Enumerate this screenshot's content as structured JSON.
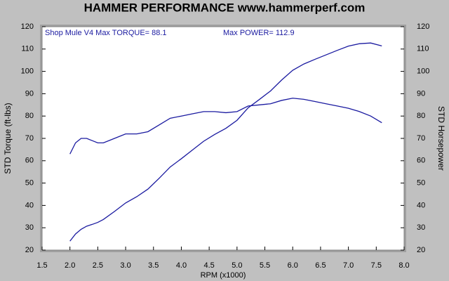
{
  "chart_data": {
    "type": "line",
    "title": "HAMMER PERFORMANCE www.hammerperf.com",
    "annotations": [
      "Shop Mule V4  Max TORQUE= 88.1",
      "Max POWER= 112.9"
    ],
    "x_label": "RPM (x1000)",
    "y_label": "STD Torque (ft-lbs)",
    "y2_label": "STD Horsepower",
    "x": [
      2.0,
      2.1,
      2.2,
      2.3,
      2.4,
      2.5,
      2.6,
      2.8,
      3.0,
      3.2,
      3.4,
      3.6,
      3.8,
      4.0,
      4.2,
      4.4,
      4.6,
      4.8,
      5.0,
      5.2,
      5.4,
      5.6,
      5.8,
      6.0,
      6.2,
      6.4,
      6.6,
      6.8,
      7.0,
      7.2,
      7.4,
      7.6
    ],
    "series": [
      {
        "color": "#1a1aa0",
        "values": [
          63,
          68,
          70,
          70,
          69,
          68,
          68,
          70,
          72,
          72,
          73,
          76,
          79,
          80,
          81,
          82,
          82,
          81.5,
          82,
          84.5,
          85,
          85.5,
          87,
          88,
          87.5,
          86.5,
          85.5,
          84.5,
          83.5,
          82,
          80,
          77
        ]
      },
      {
        "color": "#1a1aa0",
        "axis": "y2",
        "values": [
          24.0,
          27.2,
          29.3,
          30.7,
          31.5,
          32.4,
          33.7,
          37.3,
          41.1,
          43.9,
          47.3,
          52.1,
          57.2,
          60.9,
          64.8,
          68.7,
          71.8,
          74.5,
          78.1,
          83.7,
          87.4,
          91.2,
          96.1,
          100.5,
          103.3,
          105.4,
          107.4,
          109.4,
          111.3,
          112.4,
          112.7,
          111.4
        ]
      }
    ],
    "xlim": [
      1.5,
      8.0
    ],
    "xticks": [
      1.5,
      {
        "value": 2,
        "label": "2.0"
      },
      2.5,
      {
        "value": 3,
        "label": "3.0"
      },
      3.5,
      {
        "value": 4,
        "label": "4.0"
      },
      4.5,
      {
        "value": 5,
        "label": "5.0"
      },
      5.5,
      {
        "value": 6,
        "label": "6.0"
      },
      6.5,
      {
        "value": 7,
        "label": "7.0"
      },
      7.5,
      {
        "value": 8,
        "label": "8.0"
      }
    ],
    "ylim": [
      20,
      120
    ],
    "yticks": [
      20,
      30,
      40,
      50,
      60,
      70,
      80,
      90,
      100,
      110,
      120
    ],
    "y2lim": [
      20,
      120
    ],
    "y2ticks": [
      20,
      30,
      40,
      50,
      60,
      70,
      80,
      90,
      100,
      110,
      120
    ],
    "grid": false
  }
}
